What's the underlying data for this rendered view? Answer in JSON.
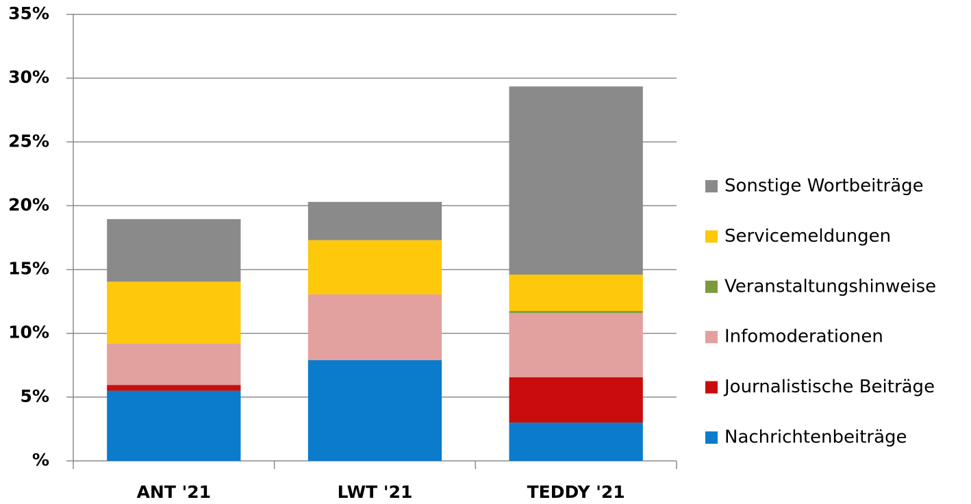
{
  "chart_data": {
    "type": "stacked_bar",
    "categories": [
      "ANT '21",
      "LWT '21",
      "TEDDY '21"
    ],
    "series": [
      {
        "name": "Nachrichtenbeiträge",
        "color": "#0b7bcc",
        "values": [
          5.5,
          7.9,
          3.0
        ]
      },
      {
        "name": "Journalistische Beiträge",
        "color": "#c90d0d",
        "values": [
          0.45,
          0,
          3.55
        ]
      },
      {
        "name": "Infomoderationen",
        "color": "#e2a09f",
        "values": [
          3.25,
          5.15,
          5.05
        ]
      },
      {
        "name": "Veranstaltungshinweise",
        "color": "#7b9b3d",
        "values": [
          0,
          0,
          0.15
        ]
      },
      {
        "name": "Servicemeldungen",
        "color": "#fec80b",
        "values": [
          4.85,
          4.25,
          2.85
        ]
      },
      {
        "name": "Sonstige Wortbeiträge",
        "color": "#8a8a8a",
        "values": [
          4.9,
          3.0,
          14.75
        ]
      }
    ],
    "ylim": [
      0,
      35
    ],
    "yticks": [
      {
        "value": 0,
        "label": "%"
      },
      {
        "value": 5,
        "label": "5%"
      },
      {
        "value": 10,
        "label": "10%"
      },
      {
        "value": 15,
        "label": "15%"
      },
      {
        "value": 20,
        "label": "20%"
      },
      {
        "value": 25,
        "label": "25%"
      },
      {
        "value": 30,
        "label": "30%"
      },
      {
        "value": 35,
        "label": "35%"
      }
    ],
    "grid": true,
    "legend": "right"
  }
}
